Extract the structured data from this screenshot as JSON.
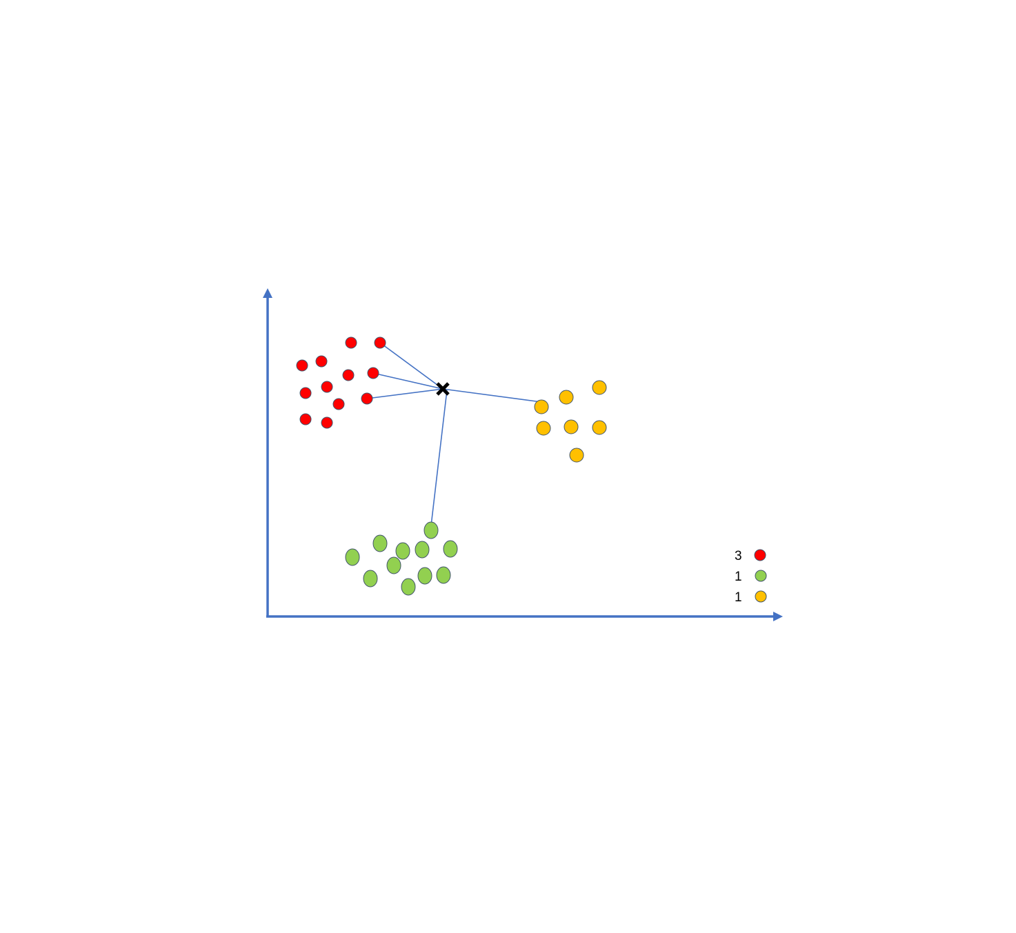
{
  "colors": {
    "axis": "#4472C4",
    "link": "#4472C4",
    "red": "#FF0000",
    "green": "#92D050",
    "yellow": "#FFC000",
    "outline": "#41546B",
    "query": "#000000"
  },
  "query_marker": "cross-icon",
  "legend": [
    {
      "count": "3",
      "color_key": "red"
    },
    {
      "count": "1",
      "color_key": "green"
    },
    {
      "count": "1",
      "color_key": "yellow"
    }
  ]
}
